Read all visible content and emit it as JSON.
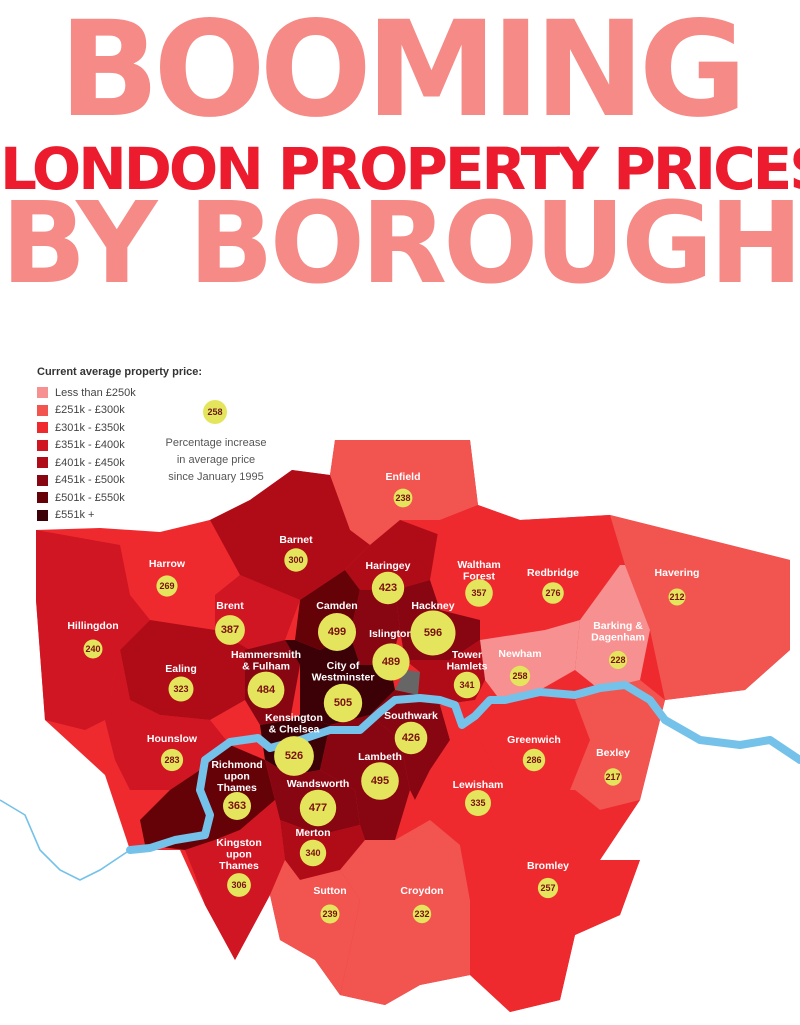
{
  "title": {
    "line1": "BOOMING",
    "line2": "LONDON PROPERTY PRICES",
    "line3": "BY BOROUGH"
  },
  "legend": {
    "title": "Current average property price:",
    "items": [
      {
        "label": "Less than £250k",
        "color": "#f79090"
      },
      {
        "label": "£251k - £300k",
        "color": "#f25450"
      },
      {
        "label": "£301k - £350k",
        "color": "#ee2a2f"
      },
      {
        "label": "£351k - £400k",
        "color": "#d01523"
      },
      {
        "label": "£401k - £450k",
        "color": "#b00c18"
      },
      {
        "label": "£451k - £500k",
        "color": "#870612"
      },
      {
        "label": "£501k - £550k",
        "color": "#650208"
      },
      {
        "label": "£551k +",
        "color": "#3b0106"
      }
    ],
    "key_value": "258",
    "key_text": [
      "Percentage increase",
      "in average price",
      "since January 1995"
    ]
  },
  "boroughs": [
    {
      "name": "Enfield",
      "value": 238
    },
    {
      "name": "Barnet",
      "value": 300
    },
    {
      "name": "Harrow",
      "value": 269
    },
    {
      "name": "Haringey",
      "value": 423
    },
    {
      "name": "Waltham Forest",
      "value": 357
    },
    {
      "name": "Redbridge",
      "value": 276
    },
    {
      "name": "Havering",
      "value": 212
    },
    {
      "name": "Hillingdon",
      "value": 240
    },
    {
      "name": "Brent",
      "value": 387
    },
    {
      "name": "Camden",
      "value": 499
    },
    {
      "name": "Islington",
      "value": 489
    },
    {
      "name": "Hackney",
      "value": 596
    },
    {
      "name": "Barking & Dagenham",
      "value": 228
    },
    {
      "name": "Newham",
      "value": 258
    },
    {
      "name": "Tower Hamlets",
      "value": 341
    },
    {
      "name": "Ealing",
      "value": 323
    },
    {
      "name": "Hammersmith & Fulham",
      "value": 484
    },
    {
      "name": "City of Westminster",
      "value": 505
    },
    {
      "name": "Kensington & Chelsea",
      "value": 526
    },
    {
      "name": "Southwark",
      "value": 426
    },
    {
      "name": "Hounslow",
      "value": 283
    },
    {
      "name": "Greenwich",
      "value": 286
    },
    {
      "name": "Bexley",
      "value": 217
    },
    {
      "name": "Richmond upon Thames",
      "value": 363
    },
    {
      "name": "Wandsworth",
      "value": 477
    },
    {
      "name": "Lambeth",
      "value": 495
    },
    {
      "name": "Lewisham",
      "value": 335
    },
    {
      "name": "Merton",
      "value": 340
    },
    {
      "name": "Kingston upon Thames",
      "value": 306
    },
    {
      "name": "Sutton",
      "value": 239
    },
    {
      "name": "Croydon",
      "value": 232
    },
    {
      "name": "Bromley",
      "value": 257
    }
  ]
}
